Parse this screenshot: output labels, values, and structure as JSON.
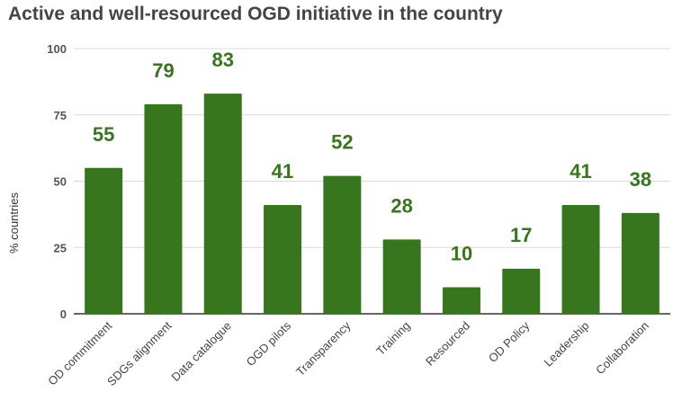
{
  "chart_data": {
    "type": "bar",
    "title": "Active and well-resourced OGD initiative in the country",
    "xlabel": "",
    "ylabel": "% countries",
    "ylim": [
      0,
      100
    ],
    "yticks": [
      0,
      25,
      50,
      75,
      100
    ],
    "categories": [
      "OD commitment",
      "SDGs alignment",
      "Data catalogue",
      "OGD pilots",
      "Transparency",
      "Training",
      "Resourced",
      "OD Policy",
      "Leadership",
      "Collaboration"
    ],
    "values": [
      55,
      79,
      83,
      41,
      52,
      28,
      10,
      17,
      41,
      38
    ],
    "grid": true,
    "legend": "none",
    "colors": {
      "bar": "#38761d",
      "label": "#38761d",
      "grid": "#d9d9d9",
      "axis": "#333333"
    }
  }
}
